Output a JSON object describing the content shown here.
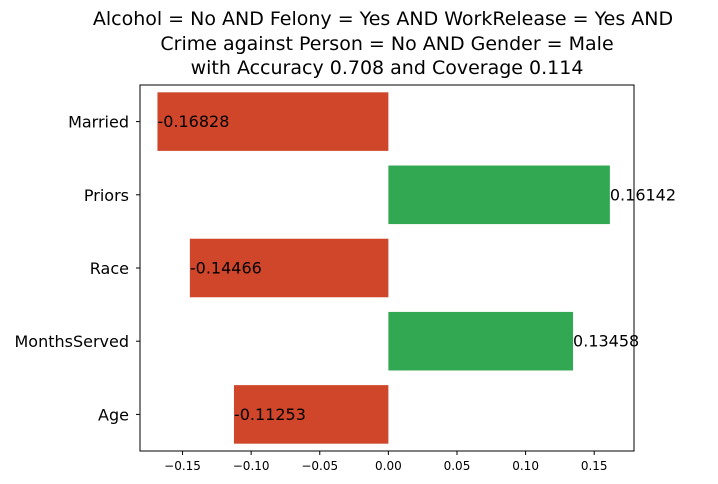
{
  "chart_data": {
    "type": "bar",
    "orientation": "horizontal",
    "title_lines": [
      "Alcohol = No AND Felony = Yes AND WorkRelease = Yes AND",
      "Crime against Person = No AND Gender = Male",
      "with Accuracy 0.708 and Coverage 0.114"
    ],
    "categories": [
      "Married",
      "Priors",
      "Race",
      "MonthsServed",
      "Age"
    ],
    "values": [
      -0.16828,
      0.16142,
      -0.14466,
      0.13458,
      -0.11253
    ],
    "value_labels": [
      "-0.16828",
      "0.16142",
      "-0.14466",
      "0.13458",
      "-0.11253"
    ],
    "xlim": [
      -0.181,
      0.179
    ],
    "xticks": [
      -0.15,
      -0.1,
      -0.05,
      0.0,
      0.05,
      0.1,
      0.15
    ],
    "xtick_labels": [
      "−0.15",
      "−0.10",
      "−0.05",
      "0.00",
      "0.05",
      "0.10",
      "0.15"
    ],
    "xlabel": "",
    "ylabel": "",
    "colors": {
      "positive": "#33a853",
      "negative": "#cf462b"
    },
    "grid": false,
    "legend": "none"
  }
}
